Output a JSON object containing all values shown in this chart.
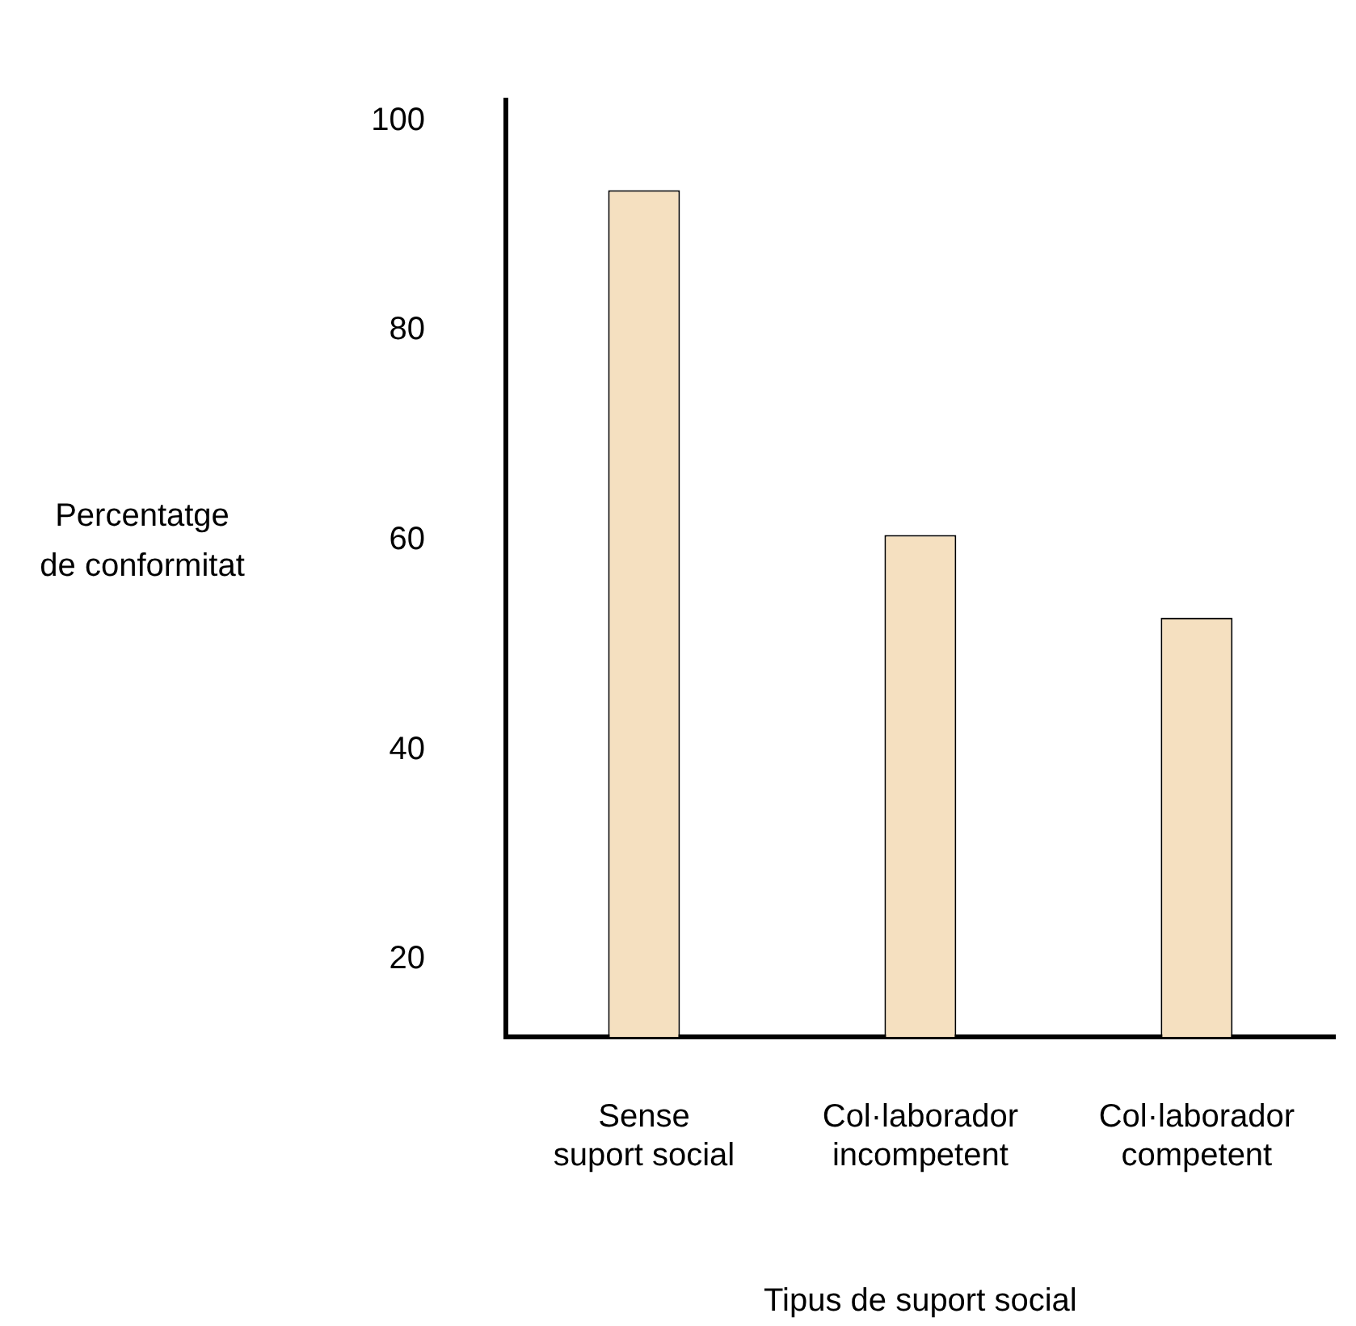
{
  "chart_data": {
    "type": "bar",
    "xlabel": "Tipus de suport social",
    "ylabel": "Percentatge\nde conformitat",
    "categories": [
      "Sense\nsuport social",
      "Col·laborador\nincompetent",
      "Col·laborador\ncompetent"
    ],
    "values": [
      93.4,
      60.5,
      52.6
    ],
    "color": "#f5e0c0",
    "ylim": [
      12.6,
      102
    ],
    "yticks": [
      20,
      40,
      60,
      80,
      100
    ],
    "grid": false,
    "legend": false
  }
}
